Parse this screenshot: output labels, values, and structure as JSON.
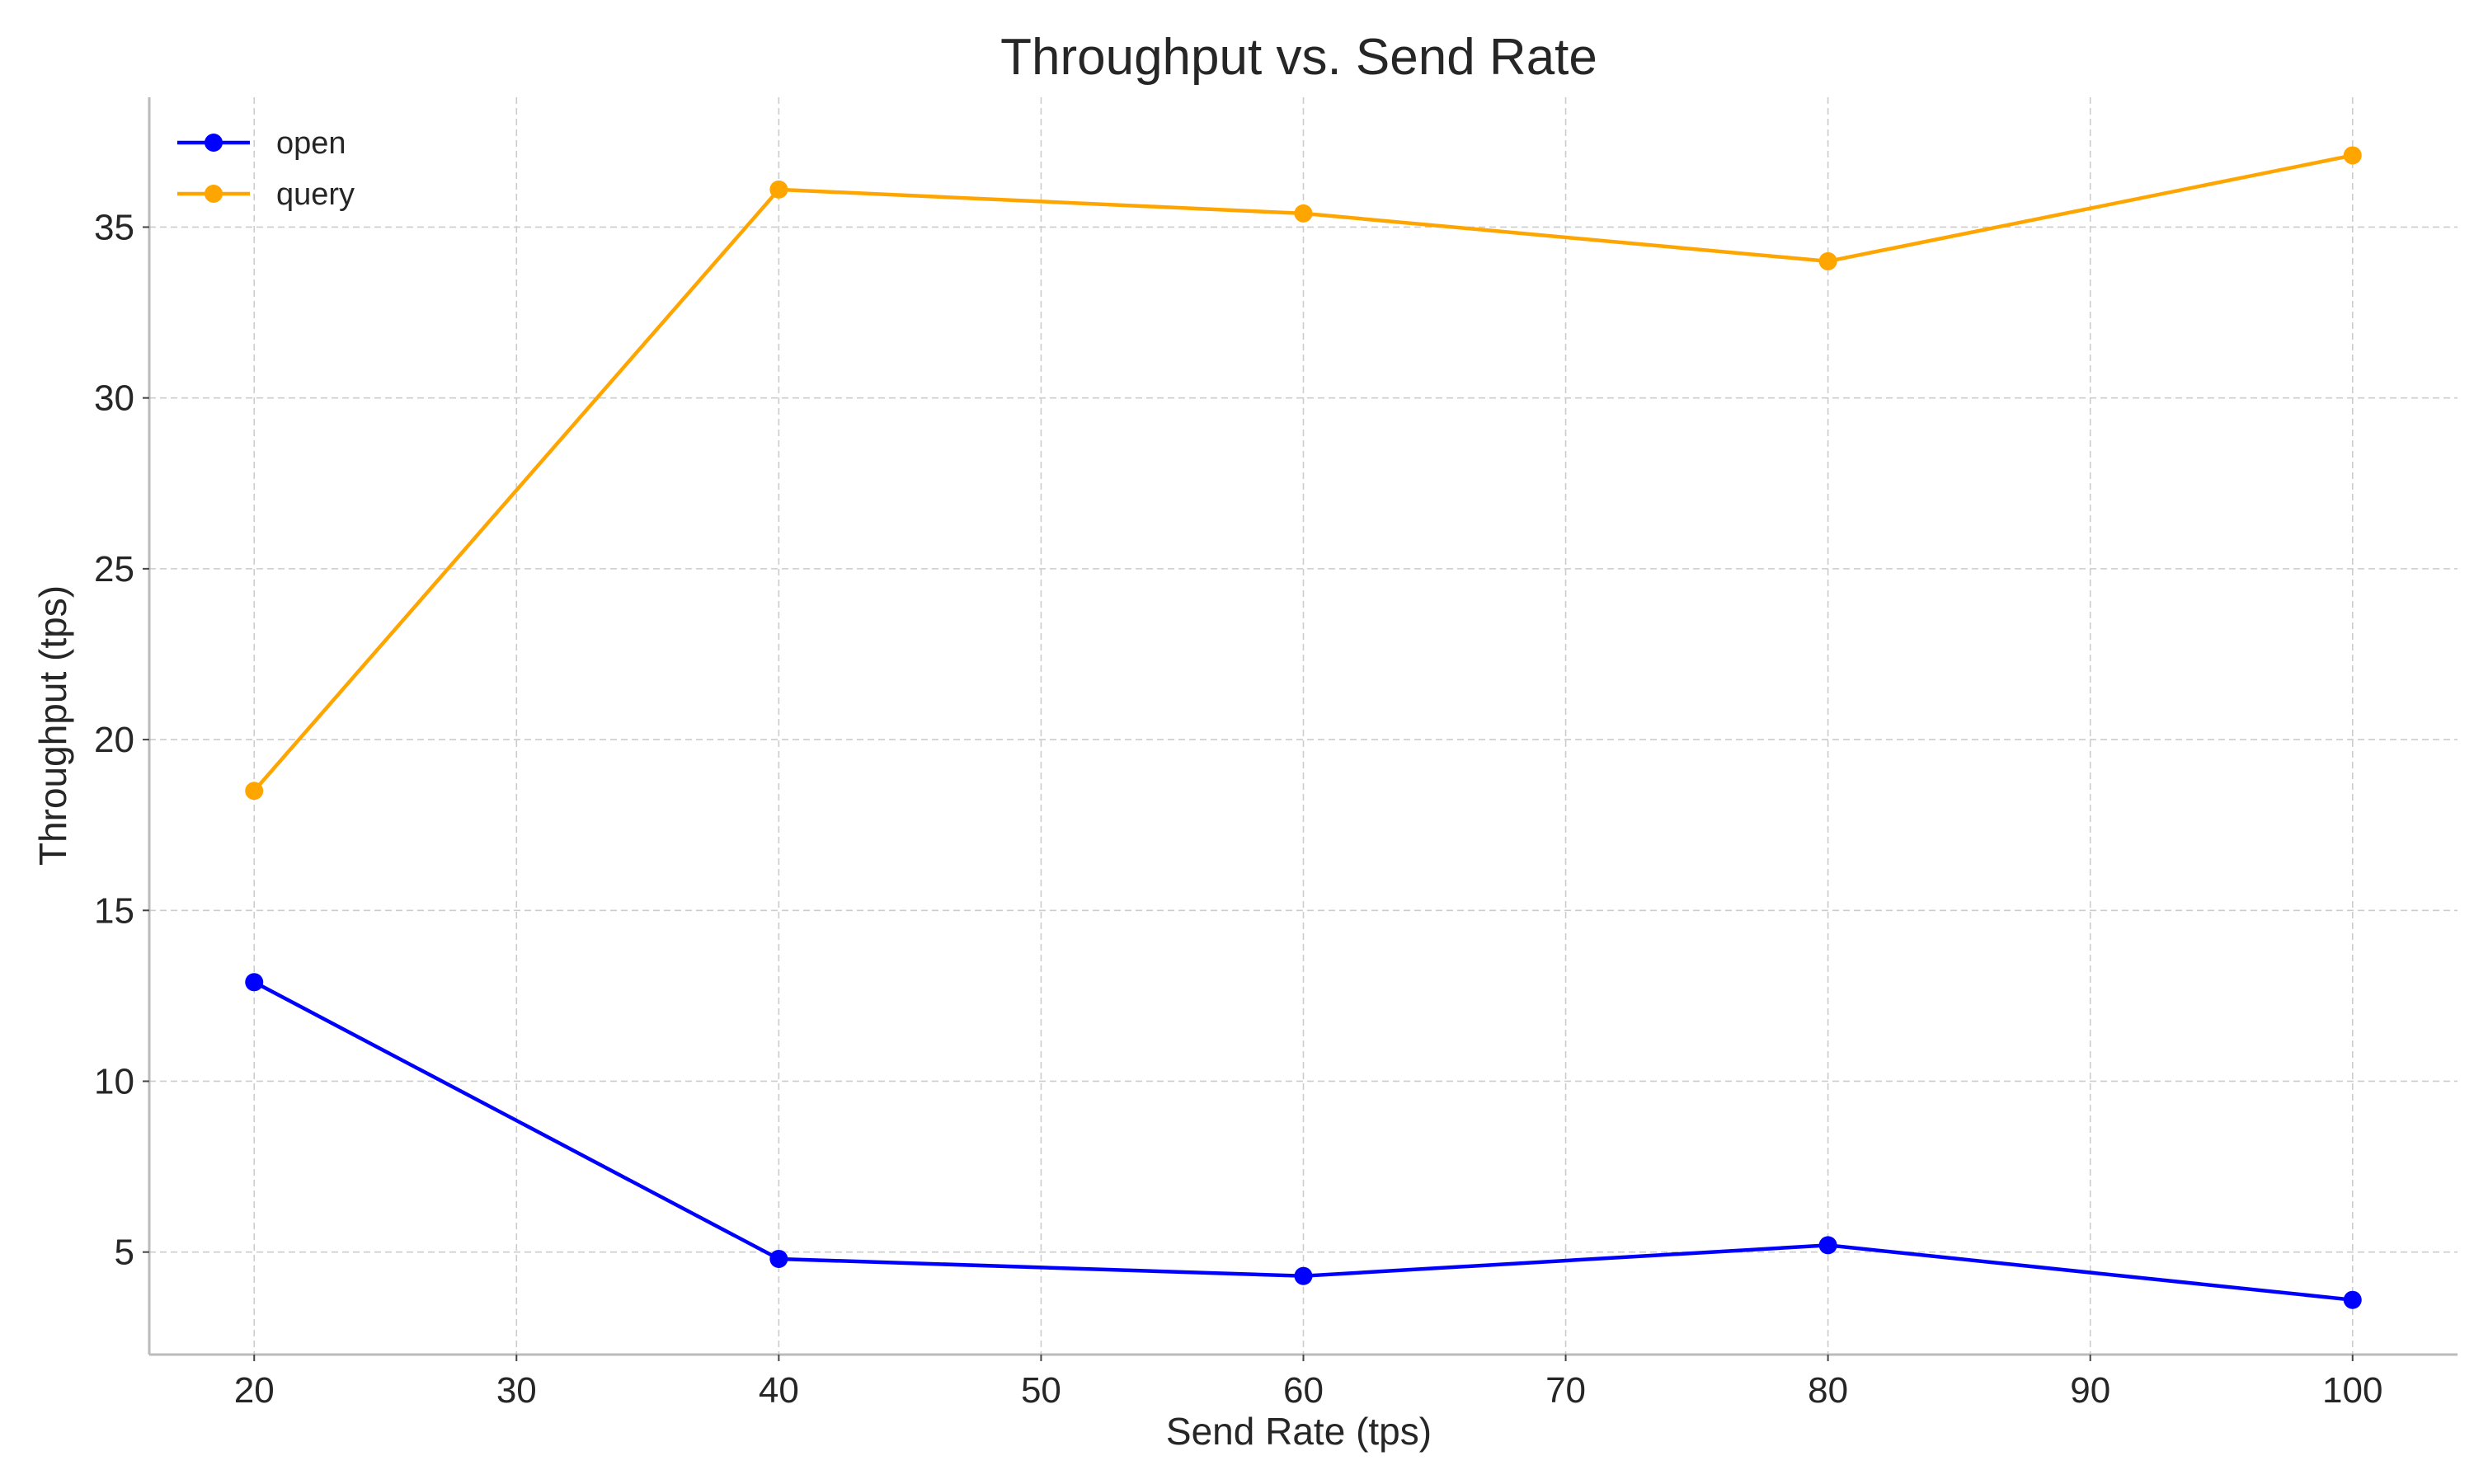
{
  "chart_data": {
    "type": "line",
    "title": "Throughput vs. Send Rate",
    "xlabel": "Send Rate (tps)",
    "ylabel": "Throughput (tps)",
    "x": [
      20,
      40,
      60,
      80,
      100
    ],
    "xlim": [
      16,
      104
    ],
    "ylim": [
      2,
      38.8
    ],
    "xticks": [
      20,
      30,
      40,
      50,
      60,
      70,
      80,
      90,
      100
    ],
    "yticks": [
      5,
      10,
      15,
      20,
      25,
      30,
      35
    ],
    "grid": true,
    "legend_position": "top-left",
    "series": [
      {
        "name": "open",
        "color": "#0000ff",
        "values": [
          12.9,
          4.8,
          4.3,
          5.2,
          3.6
        ]
      },
      {
        "name": "query",
        "color": "#ffa500",
        "values": [
          18.5,
          36.1,
          35.4,
          34.0,
          37.1
        ]
      }
    ]
  }
}
